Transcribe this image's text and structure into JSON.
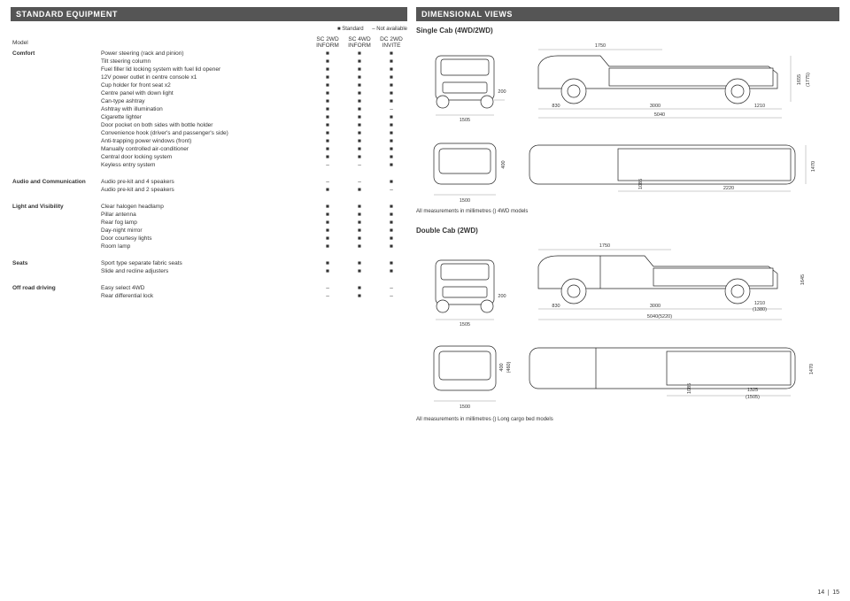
{
  "left": {
    "title": "STANDARD EQUIPMENT",
    "legend_std": "■ Standard",
    "legend_na": "– Not available",
    "header_model": "Model",
    "cols": [
      "SC 2WD\nINFORM",
      "SC 4WD\nINFORM",
      "DC 2WD\nINVITE"
    ],
    "sections": [
      {
        "cat": "Comfort",
        "rows": [
          {
            "label": "Power steering (rack and pinion)",
            "v": [
              "■",
              "■",
              "■"
            ]
          },
          {
            "label": "Tilt steering column",
            "v": [
              "■",
              "■",
              "■"
            ]
          },
          {
            "label": "Fuel filler lid locking system with fuel lid opener",
            "v": [
              "■",
              "■",
              "■"
            ]
          },
          {
            "label": "12V power outlet in centre console x1",
            "v": [
              "■",
              "■",
              "■"
            ]
          },
          {
            "label": "Cup holder for front seat x2",
            "v": [
              "■",
              "■",
              "■"
            ]
          },
          {
            "label": "Centre panel with down light",
            "v": [
              "■",
              "■",
              "■"
            ]
          },
          {
            "label": "Can-type ashtray",
            "v": [
              "■",
              "■",
              "■"
            ]
          },
          {
            "label": "Ashtray with illumination",
            "v": [
              "■",
              "■",
              "–"
            ]
          },
          {
            "label": "Cigarette lighter",
            "v": [
              "■",
              "■",
              "■"
            ]
          },
          {
            "label": "Door pocket on both sides with bottle holder",
            "v": [
              "■",
              "■",
              "■"
            ]
          },
          {
            "label": "Convenience hook (driver's and passenger's side)",
            "v": [
              "■",
              "■",
              "■"
            ]
          },
          {
            "label": "Anti-trapping power windows (front)",
            "v": [
              "■",
              "■",
              "■"
            ]
          },
          {
            "label": "Manually controlled air-conditioner",
            "v": [
              "■",
              "■",
              "■"
            ]
          },
          {
            "label": "Central door locking system",
            "v": [
              "■",
              "■",
              "■"
            ]
          },
          {
            "label": "Keyless entry system",
            "v": [
              "–",
              "–",
              "■"
            ]
          }
        ]
      },
      {
        "cat": "Audio and Communication",
        "rows": [
          {
            "label": "Audio pre-kit and 4 speakers",
            "v": [
              "–",
              "–",
              "■"
            ]
          },
          {
            "label": "Audio pre-kit and 2 speakers",
            "v": [
              "■",
              "■",
              "–"
            ]
          }
        ]
      },
      {
        "cat": "Light and Visibility",
        "rows": [
          {
            "label": "Clear halogen headlamp",
            "v": [
              "■",
              "■",
              "■"
            ]
          },
          {
            "label": "Pillar antenna",
            "v": [
              "■",
              "■",
              "■"
            ]
          },
          {
            "label": "Rear fog lamp",
            "v": [
              "■",
              "■",
              "■"
            ]
          },
          {
            "label": "Day-night mirror",
            "v": [
              "■",
              "■",
              "■"
            ]
          },
          {
            "label": "Door courtesy lights",
            "v": [
              "■",
              "■",
              "■"
            ]
          },
          {
            "label": "Room lamp",
            "v": [
              "■",
              "■",
              "■"
            ]
          }
        ]
      },
      {
        "cat": "Seats",
        "rows": [
          {
            "label": "Sport type separate fabric seats",
            "v": [
              "■",
              "■",
              "■"
            ]
          },
          {
            "label": "Slide and recline adjusters",
            "v": [
              "■",
              "■",
              "■"
            ]
          }
        ]
      },
      {
        "cat": "Off road driving",
        "rows": [
          {
            "label": "Easy select 4WD",
            "v": [
              "–",
              "■",
              "–"
            ]
          },
          {
            "label": "Rear differential lock",
            "v": [
              "–",
              "■",
              "–"
            ]
          }
        ]
      }
    ]
  },
  "right": {
    "title": "DIMENSIONAL VIEWS",
    "single_head": "Single Cab (4WD/2WD)",
    "double_head": "Double Cab (2WD)",
    "note_single": "All measurements in millimetres      () 4WD models",
    "note_double": "All measurements in millimetres      () Long cargo bed models",
    "page_l": "14",
    "page_r": "15",
    "dims": {
      "sc_front_w": "1505",
      "sc_front_oh": "200",
      "sc_side_a": "830",
      "sc_side_b": "3000",
      "sc_side_c": "1210",
      "sc_side_total": "5040",
      "sc_side_h": "1655",
      "sc_side_h2": "(1775)",
      "sc_side_top_w": "1750",
      "sc_top_front_w": "1500",
      "sc_top_front_h": "400",
      "sc_top_bed_a": "1085",
      "sc_top_bed_b": "2220",
      "sc_top_bed_w": "1470",
      "dc_front_w": "1505",
      "dc_front_oh": "200",
      "dc_side_a": "830",
      "dc_side_b": "3000",
      "dc_side_c": "1210",
      "dc_side_c2": "(1380)",
      "dc_side_total": "5040(5220)",
      "dc_side_h": "1645",
      "dc_side_top_w": "1750",
      "dc_top_front_w": "1500",
      "dc_top_front_h1": "400",
      "dc_top_front_h2": "(460)",
      "dc_top_bed_a": "1085",
      "dc_top_bed_b": "1325",
      "dc_top_bed_b2": "(1505)",
      "dc_top_bed_w": "1470"
    }
  }
}
